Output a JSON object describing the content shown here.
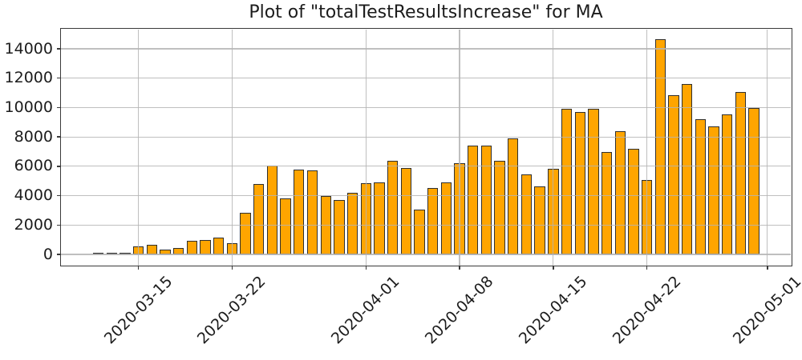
{
  "chart_data": {
    "type": "bar",
    "title": "Plot of \"totalTestResultsIncrease\" for MA",
    "xlabel": "",
    "ylabel": "",
    "legend": "none",
    "grid": true,
    "grid_color": "#b0b0b0",
    "bar_color": "#FFA500",
    "bar_edge_color": "#2f2f2f",
    "background_color": "#ffffff",
    "bar_width_days": 0.8,
    "ylim": [
      -735,
      15336
    ],
    "xlim_day_offsets": [
      -2.79,
      51.75
    ],
    "yticks": [
      0,
      2000,
      4000,
      6000,
      8000,
      10000,
      12000,
      14000
    ],
    "xticks": [
      {
        "label": "2020-03-15",
        "day": 3
      },
      {
        "label": "2020-03-22",
        "day": 10
      },
      {
        "label": "2020-04-01",
        "day": 20
      },
      {
        "label": "2020-04-08",
        "day": 27
      },
      {
        "label": "2020-04-15",
        "day": 34
      },
      {
        "label": "2020-04-22",
        "day": 41
      },
      {
        "label": "2020-05-01",
        "day": 50
      }
    ],
    "x": [
      "2020-03-12",
      "2020-03-13",
      "2020-03-14",
      "2020-03-15",
      "2020-03-16",
      "2020-03-17",
      "2020-03-18",
      "2020-03-19",
      "2020-03-20",
      "2020-03-21",
      "2020-03-22",
      "2020-03-23",
      "2020-03-24",
      "2020-03-25",
      "2020-03-26",
      "2020-03-27",
      "2020-03-28",
      "2020-03-29",
      "2020-03-30",
      "2020-03-31",
      "2020-04-01",
      "2020-04-02",
      "2020-04-03",
      "2020-04-04",
      "2020-04-05",
      "2020-04-06",
      "2020-04-07",
      "2020-04-08",
      "2020-04-09",
      "2020-04-10",
      "2020-04-11",
      "2020-04-12",
      "2020-04-13",
      "2020-04-14",
      "2020-04-15",
      "2020-04-16",
      "2020-04-17",
      "2020-04-18",
      "2020-04-19",
      "2020-04-20",
      "2020-04-21",
      "2020-04-22",
      "2020-04-23",
      "2020-04-24",
      "2020-04-25",
      "2020-04-26",
      "2020-04-27",
      "2020-04-28",
      "2020-04-29",
      "2020-04-30"
    ],
    "values": [
      80,
      80,
      90,
      540,
      680,
      330,
      450,
      920,
      990,
      1160,
      760,
      2840,
      4790,
      6060,
      3840,
      5800,
      5730,
      3960,
      3710,
      4200,
      4850,
      4900,
      6400,
      5860,
      3070,
      4520,
      4890,
      6190,
      7430,
      7430,
      6390,
      7890,
      5430,
      4610,
      5820,
      9890,
      9710,
      9930,
      6960,
      8370,
      7200,
      5090,
      14650,
      10830,
      11620,
      9190,
      8700,
      9550,
      11050,
      9970
    ]
  }
}
